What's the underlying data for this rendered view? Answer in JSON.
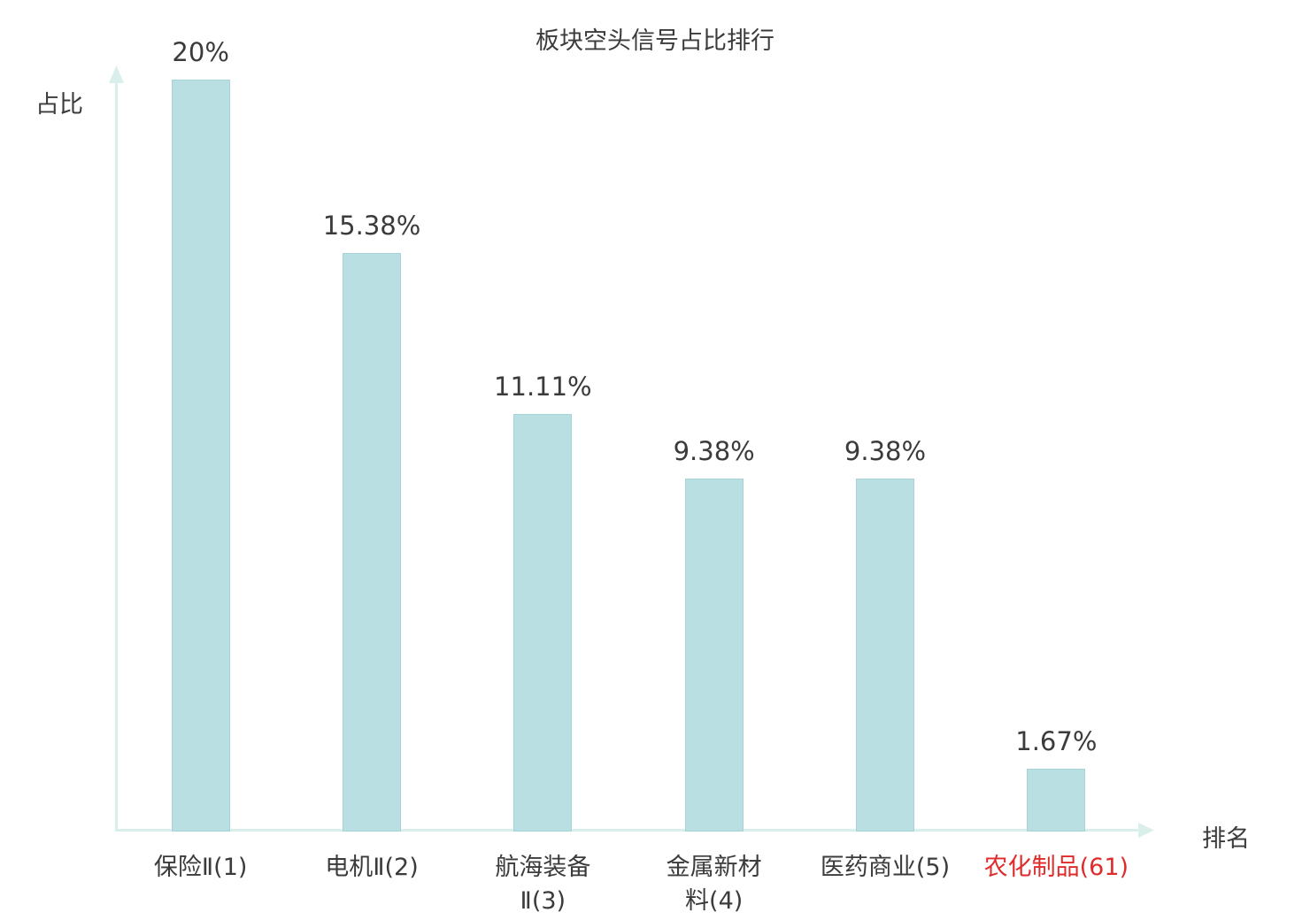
{
  "colors": {
    "bar": "#b9dfe3",
    "bar_border": "#a4d3da",
    "axis": "#d9efec",
    "text": "#3b3b3b",
    "highlight": "#e02b2b",
    "background": "#ffffff"
  },
  "chart_data": {
    "type": "bar",
    "title": "板块空头信号占比排行",
    "xlabel": "排名",
    "ylabel": "占比",
    "categories": [
      "保险Ⅱ(1)",
      "电机Ⅱ(2)",
      "航海装备Ⅱ(3)",
      "金属新材料(4)",
      "医药商业(5)",
      "农化制品(61)"
    ],
    "category_lines": [
      [
        "保险Ⅱ(1)"
      ],
      [
        "电机Ⅱ(2)"
      ],
      [
        "航海装备",
        "Ⅱ(3)"
      ],
      [
        "金属新材",
        "料(4)"
      ],
      [
        "医药商业(5)"
      ],
      [
        "农化制品(61)"
      ]
    ],
    "values": [
      20,
      15.38,
      11.11,
      9.38,
      9.38,
      1.67
    ],
    "value_labels": [
      "20%",
      "15.38%",
      "11.11%",
      "9.38%",
      "9.38%",
      "1.67%"
    ],
    "highlight_index": 5,
    "ylim": [
      0,
      20
    ],
    "grid": false,
    "legend": "none"
  }
}
